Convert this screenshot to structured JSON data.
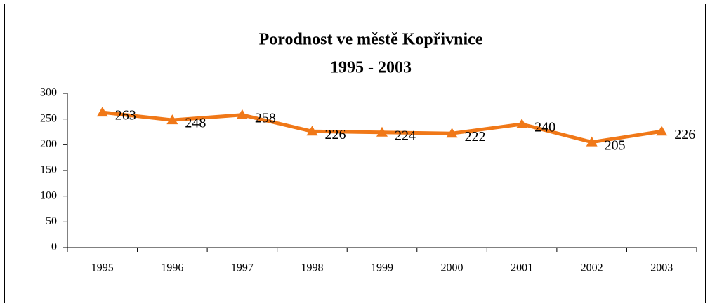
{
  "chart_data": {
    "type": "line",
    "title": [
      "Porodnost ve městě Kopřivnice",
      "1995 - 2003"
    ],
    "categories": [
      "1995",
      "1996",
      "1997",
      "1998",
      "1999",
      "2000",
      "2001",
      "2002",
      "2003"
    ],
    "series": [
      {
        "name": "Porodnost",
        "color": "#f07818",
        "values": [
          263,
          248,
          258,
          226,
          224,
          222,
          240,
          205,
          226
        ]
      }
    ],
    "ylim": [
      0,
      300
    ],
    "yticks": [
      0,
      50,
      100,
      150,
      200,
      250,
      300
    ],
    "grid": false,
    "marker": "triangle"
  }
}
